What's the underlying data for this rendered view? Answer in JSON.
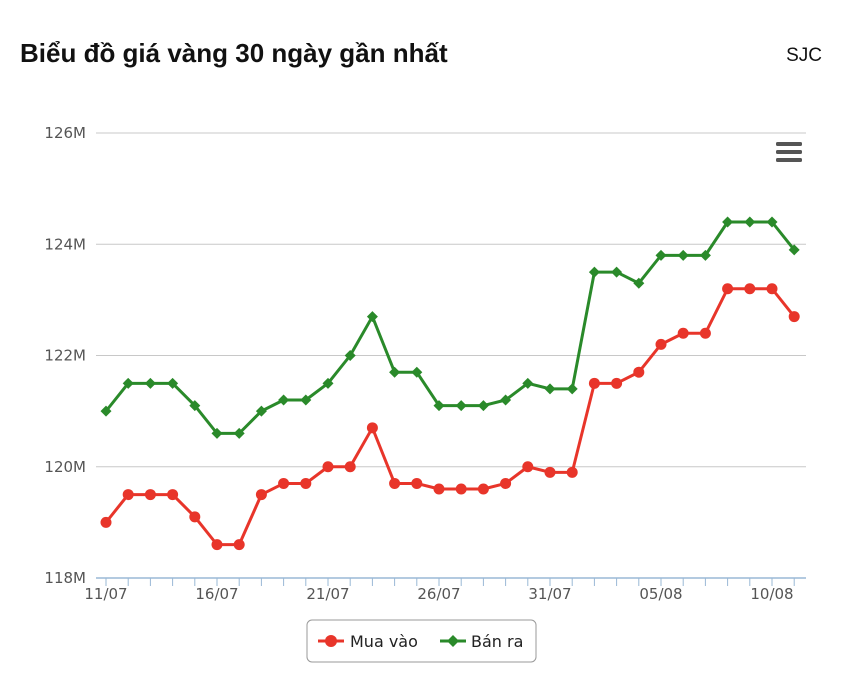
{
  "header": {
    "title": "Biểu đồ giá vàng 30 ngày gần nhất",
    "brand": "SJC"
  },
  "colors": {
    "buy": "#e8352a",
    "sell": "#2a8a2a",
    "grid": "#c8c8c8",
    "axis": "#9ab8d6",
    "menu": "#555555"
  },
  "menu": {
    "icon": "hamburger-menu-icon"
  },
  "chart_data": {
    "type": "line",
    "title": "Biểu đồ giá vàng 30 ngày gần nhất",
    "y_tick_labels": [
      "118M",
      "120M",
      "122M",
      "124M",
      "126M"
    ],
    "y_ticks": [
      118,
      120,
      122,
      124,
      126
    ],
    "ylim": [
      118,
      126
    ],
    "y_unit": "M",
    "x_tick_labels": [
      "11/07",
      "16/07",
      "21/07",
      "26/07",
      "31/07",
      "05/08",
      "10/08"
    ],
    "x_tick_indices": [
      0,
      5,
      10,
      15,
      20,
      25,
      30
    ],
    "grid": true,
    "legend_position": "bottom-center",
    "series": [
      {
        "name": "Mua vào",
        "marker": "circle",
        "values": [
          119.0,
          119.5,
          119.5,
          119.5,
          119.1,
          118.6,
          118.6,
          119.5,
          119.7,
          119.7,
          120.0,
          120.0,
          120.7,
          119.7,
          119.7,
          119.6,
          119.6,
          119.6,
          119.7,
          120.0,
          119.9,
          119.9,
          121.5,
          121.5,
          121.7,
          122.2,
          122.4,
          122.4,
          123.2,
          123.2,
          123.2,
          122.7
        ]
      },
      {
        "name": "Bán ra",
        "marker": "diamond",
        "values": [
          121.0,
          121.5,
          121.5,
          121.5,
          121.1,
          120.6,
          120.6,
          121.0,
          121.2,
          121.2,
          121.5,
          122.0,
          122.7,
          121.7,
          121.7,
          121.1,
          121.1,
          121.1,
          121.2,
          121.5,
          121.4,
          121.4,
          123.5,
          123.5,
          123.3,
          123.8,
          123.8,
          123.8,
          124.4,
          124.4,
          124.4,
          123.9
        ]
      }
    ]
  }
}
